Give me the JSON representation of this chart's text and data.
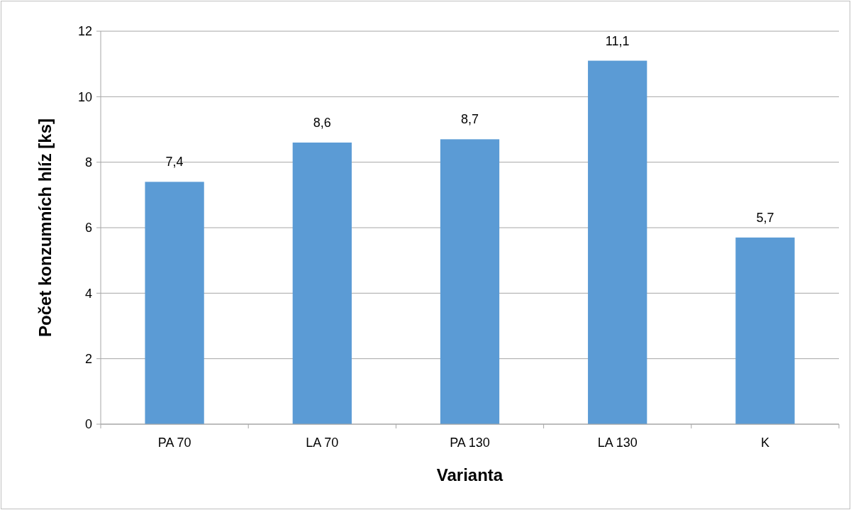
{
  "chart_data": {
    "type": "bar",
    "xlabel": "Varianta",
    "ylabel": "Počet konzumních hlíz [ks]",
    "categories": [
      "PA 70",
      "LA 70",
      "PA 130",
      "LA 130",
      "K"
    ],
    "values": [
      7.4,
      8.6,
      8.7,
      11.1,
      5.7
    ],
    "value_labels": [
      "7,4",
      "8,6",
      "8,7",
      "11,1",
      "5,7"
    ],
    "color": "#5b9bd5",
    "ylim": [
      0,
      12
    ],
    "yticks": [
      0,
      2,
      4,
      6,
      8,
      10,
      12
    ],
    "grid": "y"
  }
}
